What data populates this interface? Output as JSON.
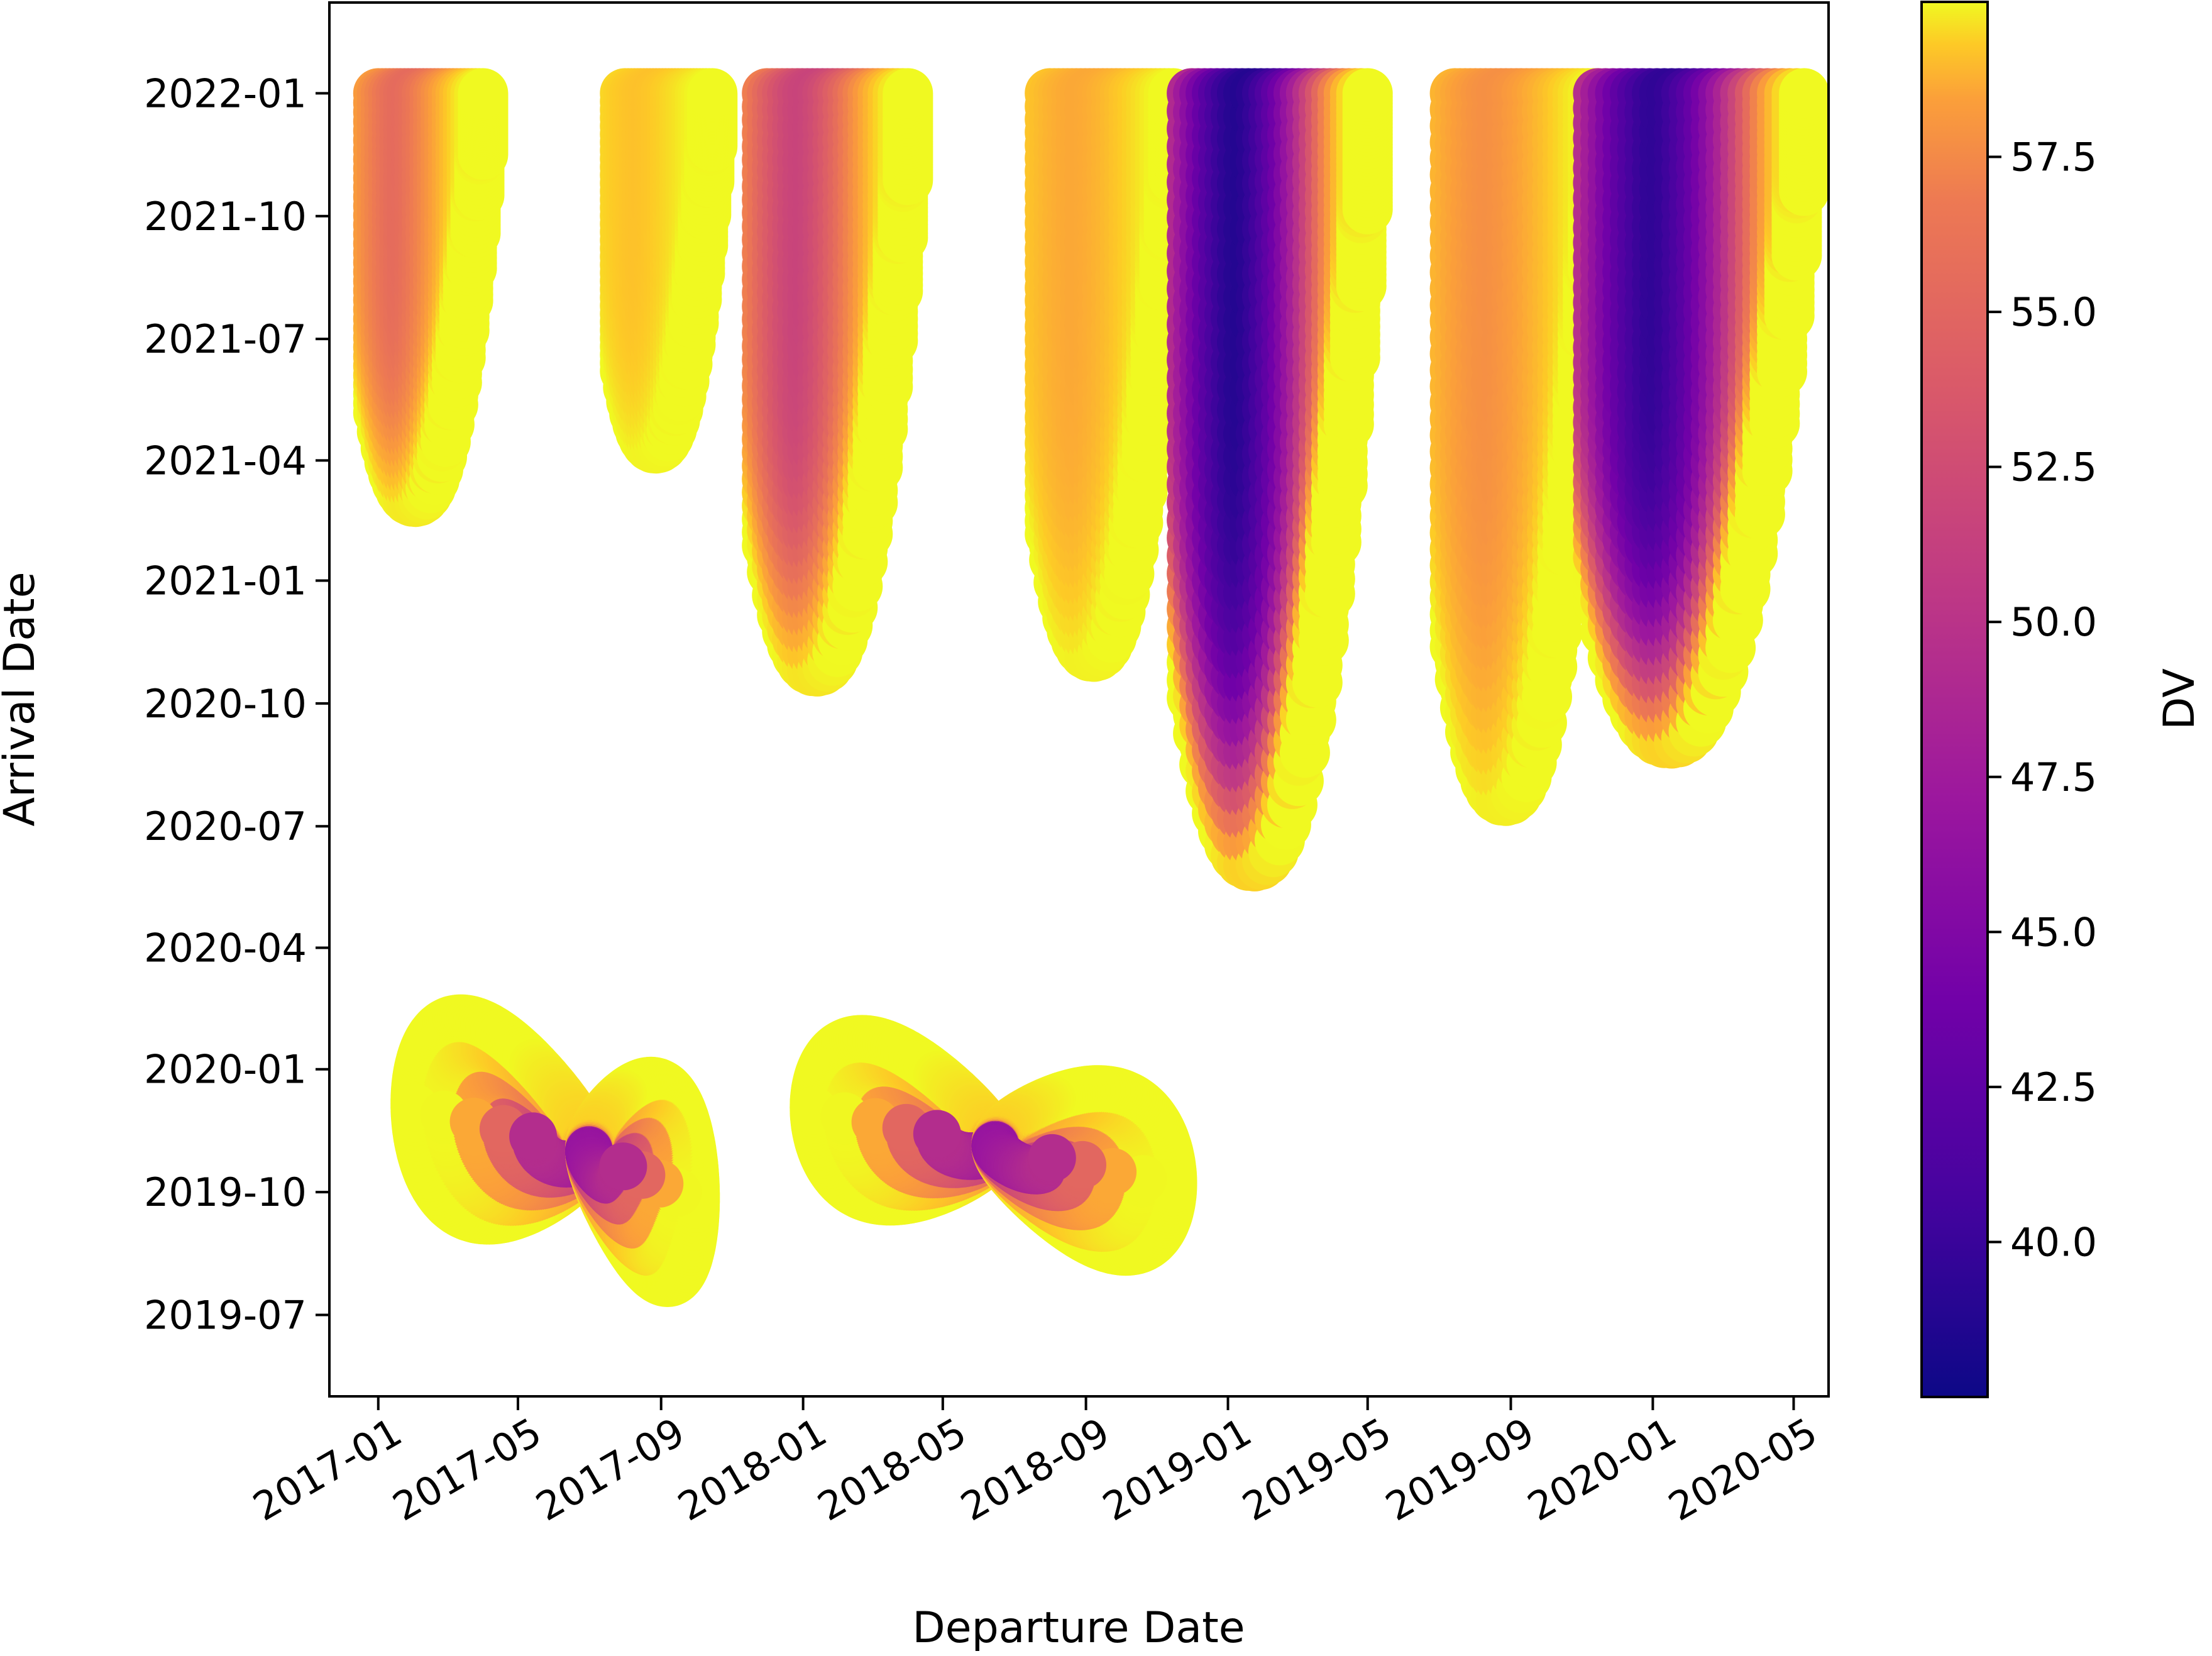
{
  "chart_data": {
    "type": "scatter",
    "title": "",
    "xlabel": "Departure Date",
    "ylabel": "Arrival Date",
    "colorbar_label": "DV",
    "colormap": "plasma",
    "color_range": [
      37.5,
      60.0
    ],
    "colorbar_ticks": [
      "40.0",
      "42.5",
      "45.0",
      "47.5",
      "50.0",
      "52.5",
      "55.0",
      "57.5"
    ],
    "x_ticks": [
      "2017-01",
      "2017-05",
      "2017-09",
      "2018-01",
      "2018-05",
      "2018-09",
      "2019-01",
      "2019-05",
      "2019-09",
      "2020-01",
      "2020-05"
    ],
    "y_ticks": [
      "2019-07",
      "2019-10",
      "2020-01",
      "2020-04",
      "2020-07",
      "2020-10",
      "2021-01",
      "2021-04",
      "2021-07",
      "2021-10",
      "2022-01"
    ],
    "xlim": [
      "2016-11-20",
      "2020-05-31"
    ],
    "ylim": [
      "2019-05-01",
      "2022-03-10"
    ],
    "grid": false,
    "legend": "none",
    "plume_regions": [
      {
        "x_range": [
          "2017-01-01",
          "2017-04-01"
        ],
        "y_top": "2022-01-01",
        "y_bottom": "2021-03-01",
        "min_dv": 51.5
      },
      {
        "x_range": [
          "2017-08-01",
          "2017-10-15"
        ],
        "y_top": "2022-01-01",
        "y_bottom": "2021-04-10",
        "min_dv": 57.0
      },
      {
        "x_range": [
          "2017-12-01",
          "2018-04-01"
        ],
        "y_top": "2022-01-01",
        "y_bottom": "2020-10-25",
        "min_dv": 48.5
      },
      {
        "x_range": [
          "2018-08-01",
          "2018-11-15"
        ],
        "y_top": "2022-01-01",
        "y_bottom": "2020-11-05",
        "min_dv": 55.5
      },
      {
        "x_range": [
          "2018-12-01",
          "2019-05-01"
        ],
        "y_top": "2022-01-01",
        "y_bottom": "2020-06-01",
        "min_dv": 38.5
      },
      {
        "x_range": [
          "2019-07-15",
          "2019-11-15"
        ],
        "y_top": "2022-01-01",
        "y_bottom": "2020-07-20",
        "min_dv": 54.0
      },
      {
        "x_range": [
          "2019-11-15",
          "2020-05-10"
        ],
        "y_top": "2022-01-01",
        "y_bottom": "2020-09-01",
        "min_dv": 39.0
      }
    ],
    "butterfly_regions": [
      {
        "center": [
          "2017-07-01",
          "2019-11-01"
        ],
        "x_range": [
          "2017-02-01",
          "2017-10-01"
        ],
        "y_range": [
          "2019-06-15",
          "2020-02-05"
        ],
        "min_dv": 38.5
      },
      {
        "center": [
          "2018-06-15",
          "2019-11-05"
        ],
        "x_range": [
          "2018-01-10",
          "2018-11-15"
        ],
        "y_range": [
          "2019-07-20",
          "2020-01-25"
        ],
        "min_dv": 38.5
      }
    ]
  }
}
